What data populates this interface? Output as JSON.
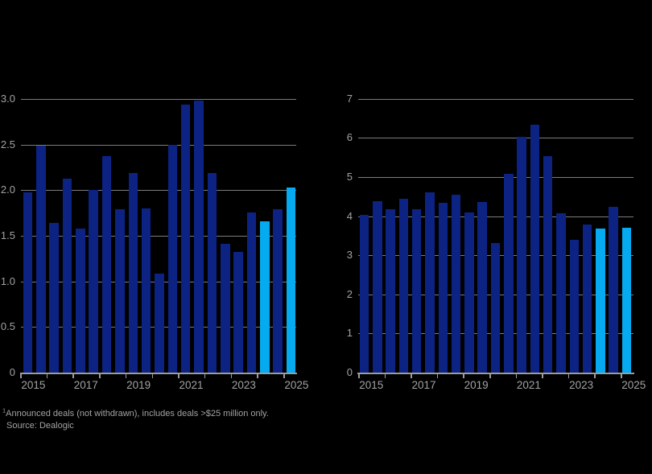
{
  "page": {
    "background": "#000000"
  },
  "colors": {
    "bar_primary": "#0c2384",
    "bar_highlight": "#05aaf0",
    "gridline": "#7c7c7c",
    "axis": "#9c9c9c",
    "text": "#a2a2a2"
  },
  "footnote": {
    "sup": "1",
    "line1": "Announced deals (not withdrawn), includes deals >$25 million only.",
    "line2": "Source: Dealogic"
  },
  "chart_data": [
    {
      "type": "bar",
      "position": "left",
      "title": "",
      "xlabel": "",
      "ylabel": "",
      "x": [
        "2015 H1",
        "2015 H2",
        "2016 H1",
        "2016 H2",
        "2017 H1",
        "2017 H2",
        "2018 H1",
        "2018 H2",
        "2019 H1",
        "2019 H2",
        "2020 H1",
        "2020 H2",
        "2021 H1",
        "2021 H2",
        "2022 H1",
        "2022 H2",
        "2023 H1",
        "2023 H2",
        "2024 H1",
        "2024 H2",
        "2025 H1"
      ],
      "values": [
        1.98,
        2.49,
        1.64,
        2.13,
        1.58,
        2.0,
        2.37,
        1.79,
        2.19,
        1.8,
        1.09,
        2.5,
        2.94,
        2.98,
        2.19,
        1.41,
        1.32,
        1.76,
        1.66,
        1.79,
        2.03
      ],
      "highlight_periods": [
        "2024 H1",
        "2025 H1"
      ],
      "xticklabels": [
        "2015",
        "2017",
        "2019",
        "2021",
        "2023",
        "2025"
      ],
      "yticks": [
        0,
        0.5,
        1,
        1.5,
        2,
        2.5,
        3
      ],
      "ytick_labels": [
        "0",
        "0.5",
        "1.0",
        "1.5",
        "2.0",
        "2.5",
        "3.0"
      ],
      "ylim": [
        0,
        3
      ],
      "grid": "horizontal",
      "legend": "none"
    },
    {
      "type": "bar",
      "position": "right",
      "title": "",
      "xlabel": "",
      "ylabel": "",
      "x": [
        "2015 H1",
        "2015 H2",
        "2016 H1",
        "2016 H2",
        "2017 H1",
        "2017 H2",
        "2018 H1",
        "2018 H2",
        "2019 H1",
        "2019 H2",
        "2020 H1",
        "2020 H2",
        "2021 H1",
        "2021 H2",
        "2022 H1",
        "2022 H2",
        "2023 H1",
        "2023 H2",
        "2024 H1",
        "2024 H2",
        "2025 H1"
      ],
      "values": [
        4.03,
        4.38,
        4.17,
        4.45,
        4.18,
        4.61,
        4.35,
        4.55,
        4.09,
        4.37,
        3.31,
        5.09,
        6.03,
        6.33,
        5.54,
        4.08,
        3.4,
        3.79,
        3.69,
        4.23,
        3.71
      ],
      "highlight_periods": [
        "2024 H1",
        "2025 H1"
      ],
      "xticklabels": [
        "2015",
        "2017",
        "2019",
        "2021",
        "2023",
        "2025"
      ],
      "yticks": [
        0,
        1,
        2,
        3,
        4,
        5,
        6,
        7
      ],
      "ytick_labels": [
        "0",
        "1",
        "2",
        "3",
        "4",
        "5",
        "6",
        "7"
      ],
      "ylim": [
        0,
        7
      ],
      "grid": "horizontal",
      "legend": "none"
    }
  ]
}
